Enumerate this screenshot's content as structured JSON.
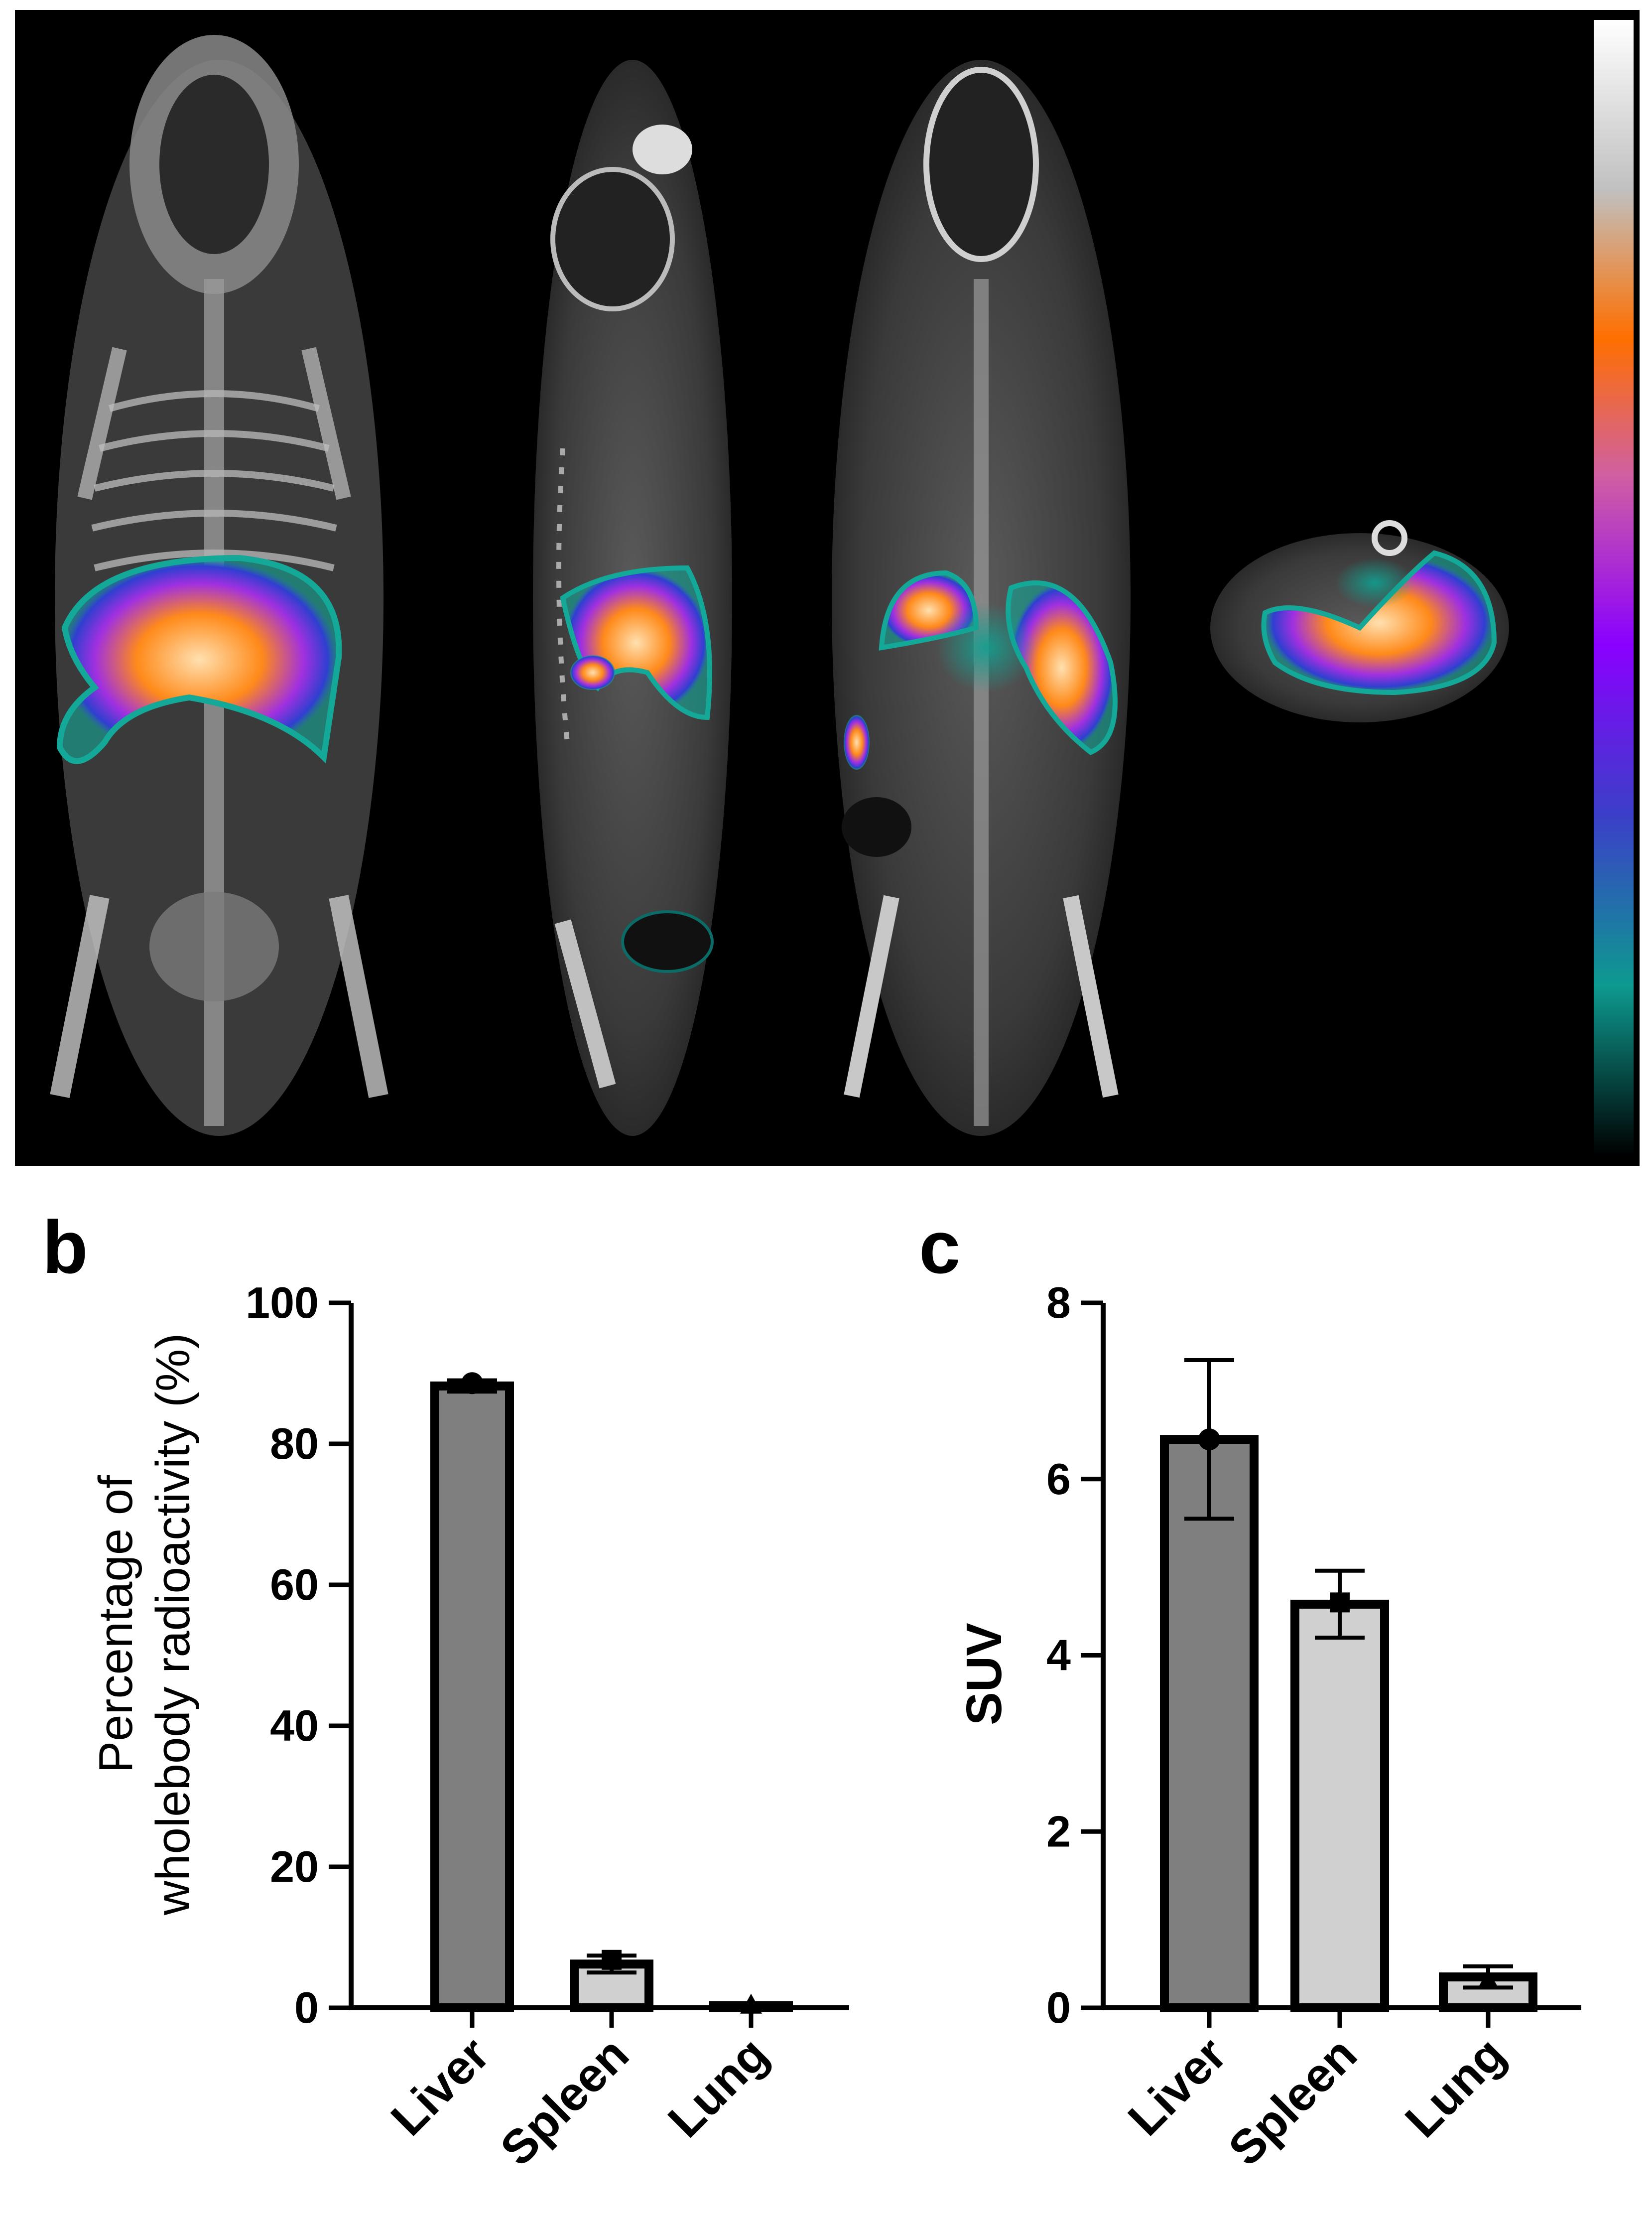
{
  "figure": {
    "scan_panel": {
      "views": [
        "3d-volume-rendering",
        "sagittal-slice",
        "coronal-slice",
        "transverse-slice"
      ],
      "colorbar_stops": [
        "#000000",
        "#0d9a90",
        "#3b3fc8",
        "#8a00ff",
        "#ff6f00",
        "#ffffff"
      ],
      "hotspot_colors": [
        "#14a898",
        "#7a2cff",
        "#ff7a10",
        "#ffd28a"
      ]
    },
    "colors": {
      "liver_bar": "#7f7f7f",
      "spleen_bar": "#d0d0d0",
      "lung_bar": "#d0d0d0",
      "outline": "#000000",
      "scan_background": "#000000"
    }
  },
  "chart_data": [
    {
      "panel_letter": "b",
      "type": "bar",
      "categories": [
        "Liver",
        "Spleen",
        "Lung"
      ],
      "values": [
        88.2,
        6.2,
        0.3
      ],
      "errors": [
        0.8,
        1.2,
        0.3
      ],
      "marker_values": [
        88.6,
        6.8,
        0.3
      ],
      "markers": [
        "circle",
        "square",
        "triangle"
      ],
      "ylabel_lines": [
        "Percentage of",
        "wholebody radioactivity (%)"
      ],
      "ylim": [
        0,
        100
      ],
      "yticks": [
        0,
        20,
        40,
        60,
        80,
        100
      ],
      "ytick_labels": [
        "0",
        "20",
        "40",
        "60",
        "80",
        "100"
      ],
      "grid": false
    },
    {
      "panel_letter": "c",
      "type": "bar",
      "categories": [
        "Liver",
        "Spleen",
        "Lung"
      ],
      "values": [
        6.45,
        4.58,
        0.35
      ],
      "errors": [
        0.9,
        0.38,
        0.12
      ],
      "marker_values": [
        6.45,
        4.6,
        0.3
      ],
      "markers": [
        "circle",
        "square",
        "triangle"
      ],
      "ylabel": "SUV",
      "ylim": [
        0,
        8
      ],
      "yticks": [
        0,
        2,
        4,
        6,
        8
      ],
      "ytick_labels": [
        "0",
        "2",
        "4",
        "6",
        "8"
      ],
      "grid": false
    }
  ]
}
